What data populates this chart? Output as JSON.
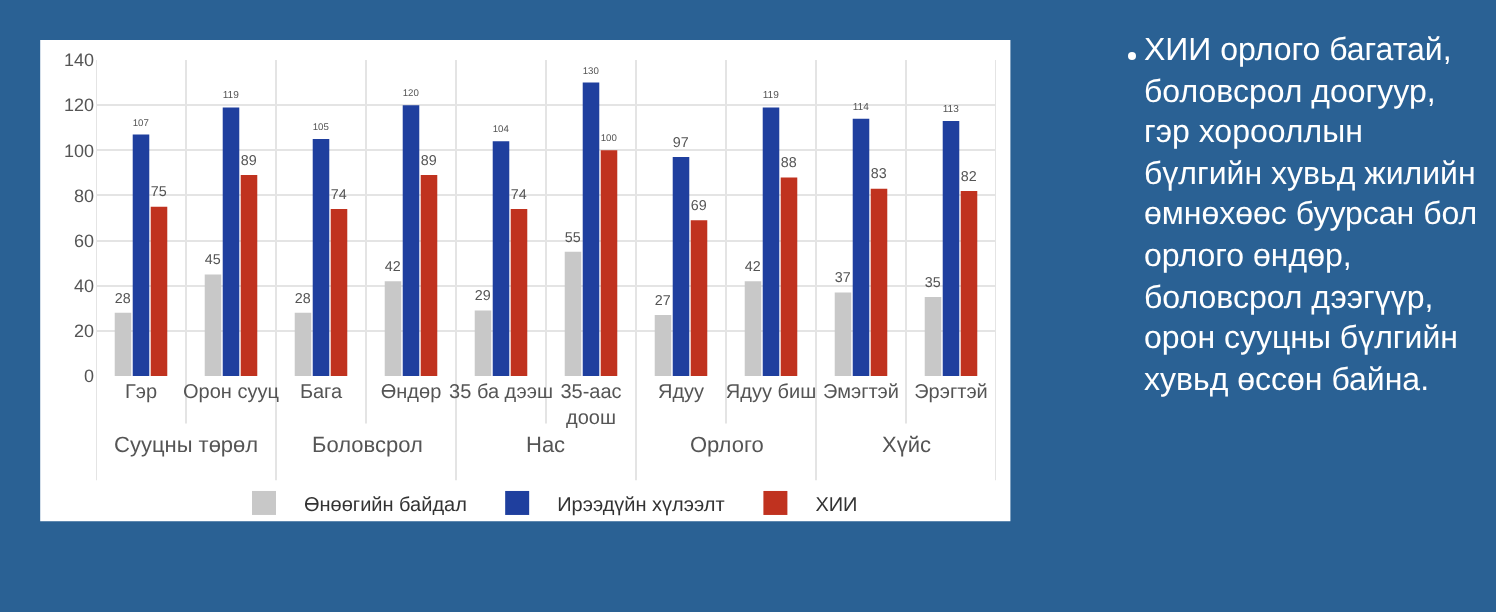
{
  "chart_data": {
    "type": "bar",
    "categories": [
      "Гэр",
      "Орон сууц",
      "Бага",
      "Өндөр",
      "35 ба дээш",
      "35-аас доош",
      "Ядуу",
      "Ядуу биш",
      "Эмэгтэй",
      "Эрэгтэй"
    ],
    "series": [
      {
        "name": "Өнөөгийн байдал",
        "color": "#c8c8c8",
        "values": [
          28,
          45,
          28,
          42,
          29,
          55,
          27,
          42,
          37,
          35
        ]
      },
      {
        "name": "Ирээдүйн хүлээлт",
        "color": "#1f3f9e",
        "values": [
          107,
          119,
          105,
          120,
          104,
          130,
          97,
          119,
          114,
          113
        ]
      },
      {
        "name": "ХИИ",
        "color": "#c0321f",
        "values": [
          75,
          89,
          74,
          89,
          74,
          100,
          69,
          88,
          83,
          82
        ]
      }
    ],
    "ylim": [
      0,
      140
    ],
    "yticks": [
      0,
      20,
      40,
      60,
      80,
      100,
      120,
      140
    ],
    "grid": true,
    "legend": "bottom",
    "data_labels": true,
    "annotations": [
      "Сууцны төрөл",
      "Боловсрол",
      "Нас",
      "Орлого",
      "Хүйс",
      "ХИИ орлого багатай, боловсрол доогуур, гэр хорооллын бүлгийн хувьд жилийн өмнөхөөс буурсан бол орлого өндөр, боловсрол дээгүүр, орон сууцны бүлгийн хувьд өссөн байна."
    ]
  }
}
